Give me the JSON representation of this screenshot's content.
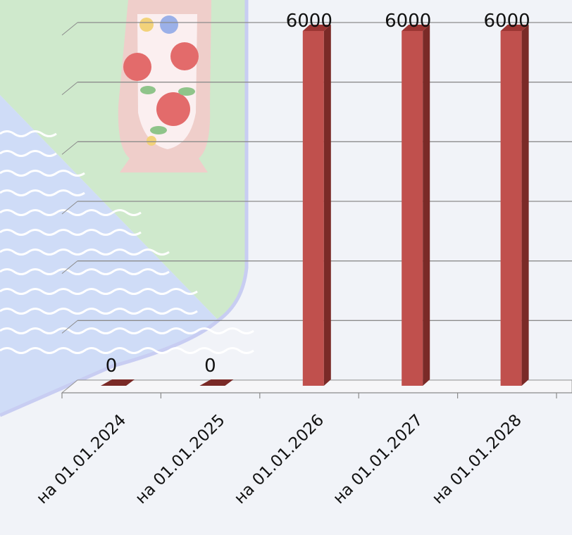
{
  "chart_data": {
    "type": "bar",
    "categories": [
      "на 01.01.2024",
      "на 01.01.2025",
      "на 01.01.2026",
      "на 01.01.2027",
      "на 01.01.2028"
    ],
    "values": [
      0,
      0,
      6000,
      6000,
      6000
    ],
    "data_labels": [
      "0",
      "0",
      "6000",
      "6000",
      "6000"
    ],
    "title": "",
    "xlabel": "",
    "ylabel": "",
    "ylim": [
      0,
      6000
    ],
    "grid": true,
    "legend": "none",
    "style": "3d-column"
  },
  "colors": {
    "bar_front": "#c0504d",
    "bar_side": "#7a2a27",
    "bar_top": "#9b3533",
    "gridline": "#8c8c8c",
    "background": "#f1f3f8",
    "watermark_green": "#cfe9cc",
    "watermark_blue": "#cfdcf7",
    "watermark_border": "#c8cdf2"
  },
  "background_image": "regional-emblem-watermark"
}
